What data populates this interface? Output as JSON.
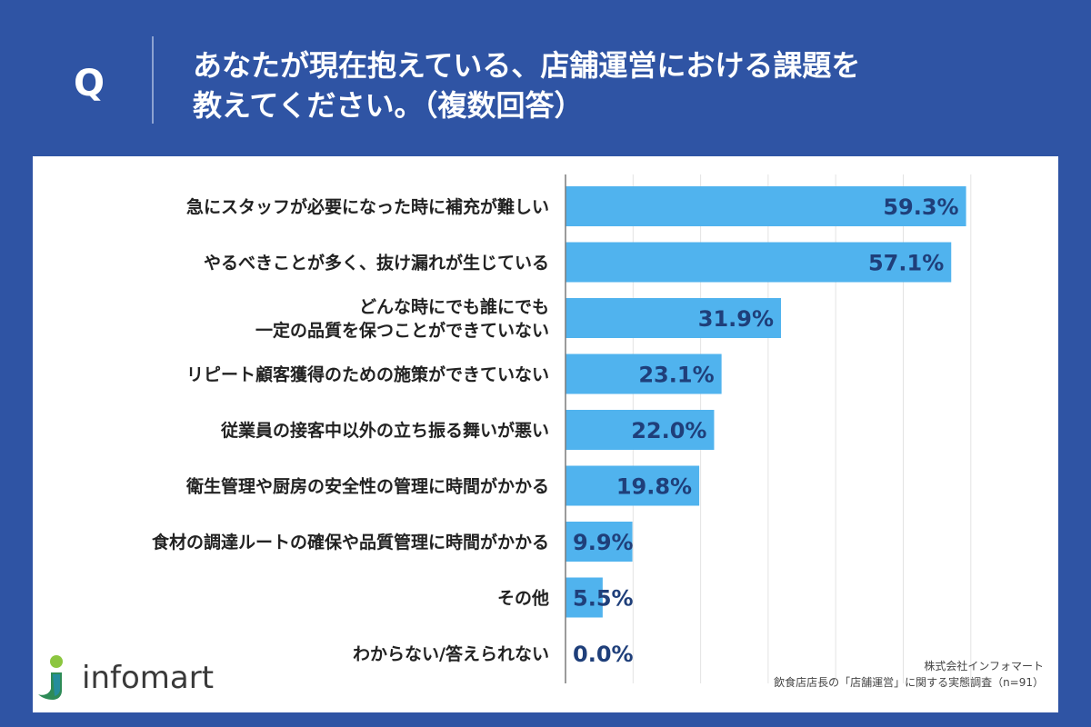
{
  "question": {
    "marker": "Q",
    "line1": "あなたが現在抱えている、店舗運営における課題を",
    "line2": "教えてください。（複数回答）"
  },
  "colors": {
    "header_bg": "#2f54a4",
    "bar": "#50b3ee",
    "value_text": "#1f3f7a",
    "label_text": "#222222",
    "grid": "#e3e3e3"
  },
  "chart_data": {
    "type": "bar",
    "orientation": "horizontal",
    "categories": [
      [
        "急にスタッフが必要になった時に補充が難しい"
      ],
      [
        "やるべきことが多く、抜け漏れが生じている"
      ],
      [
        "どんな時にでも誰にでも",
        "一定の品質を保つことができていない"
      ],
      [
        "リピート顧客獲得のための施策ができていない"
      ],
      [
        "従業員の接客中以外の立ち振る舞いが悪い"
      ],
      [
        "衛生管理や厨房の安全性の管理に時間がかかる"
      ],
      [
        "食材の調達ルートの確保や品質管理に時間がかかる"
      ],
      [
        "その他"
      ],
      [
        "わからない/答えられない"
      ]
    ],
    "values": [
      59.3,
      57.1,
      31.9,
      23.1,
      22.0,
      19.8,
      9.9,
      5.5,
      0.0
    ],
    "value_labels": [
      "59.3%",
      "57.1%",
      "31.9%",
      "23.1%",
      "22.0%",
      "19.8%",
      "9.9%",
      "5.5%",
      "0.0%"
    ],
    "xlim": [
      0,
      60
    ],
    "grid": true,
    "legend": "none"
  },
  "branding": {
    "logo_text": "infomart",
    "company": "株式会社インフォマート",
    "source": "飲食店店長の「店舗運営」に関する実態調査（n=91）"
  }
}
